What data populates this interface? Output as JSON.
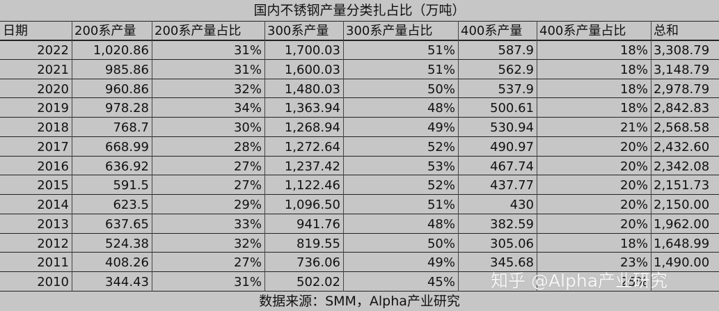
{
  "chart_data": {
    "type": "table",
    "title": "国内不锈钢产量分类扎占比（万吨）",
    "columns": [
      "日期",
      "200系产量",
      "200系产量占比",
      "300系产量",
      "300系产量占比",
      "400系产量",
      "400系产量占比",
      "总和"
    ],
    "rows": [
      [
        "2022",
        "1,020.86",
        "31%",
        "1,700.03",
        "51%",
        "587.9",
        "18%",
        "3,308.79"
      ],
      [
        "2021",
        "985.86",
        "31%",
        "1,600.03",
        "51%",
        "562.9",
        "18%",
        "3,148.79"
      ],
      [
        "2020",
        "960.86",
        "32%",
        "1,480.03",
        "50%",
        "537.9",
        "18%",
        "2,978.79"
      ],
      [
        "2019",
        "978.28",
        "34%",
        "1,363.94",
        "48%",
        "500.61",
        "18%",
        "2,842.83"
      ],
      [
        "2018",
        "768.7",
        "30%",
        "1,268.94",
        "49%",
        "530.94",
        "21%",
        "2,568.58"
      ],
      [
        "2017",
        "668.99",
        "28%",
        "1,272.64",
        "52%",
        "490.97",
        "20%",
        "2,432.60"
      ],
      [
        "2016",
        "636.92",
        "27%",
        "1,237.42",
        "53%",
        "467.74",
        "20%",
        "2,342.08"
      ],
      [
        "2015",
        "591.5",
        "27%",
        "1,122.46",
        "52%",
        "437.77",
        "20%",
        "2,151.73"
      ],
      [
        "2014",
        "623.5",
        "29%",
        "1,096.50",
        "51%",
        "430",
        "20%",
        "2,150.00"
      ],
      [
        "2013",
        "637.65",
        "33%",
        "941.76",
        "48%",
        "382.59",
        "20%",
        "1,962.00"
      ],
      [
        "2012",
        "524.38",
        "32%",
        "819.55",
        "50%",
        "305.06",
        "18%",
        "1,648.99"
      ],
      [
        "2011",
        "408.26",
        "27%",
        "736.06",
        "49%",
        "345.68",
        "23%",
        "1,490.00"
      ],
      [
        "2010",
        "344.43",
        "31%",
        "502.02",
        "45%",
        "",
        "25%",
        ""
      ]
    ],
    "source": "数据来源：SMM，Alpha产业研究",
    "watermark": "知乎 @Alpha产业研究"
  },
  "colors": {
    "background": "#c6c6c6",
    "text": "#111111",
    "rule": "#222222"
  }
}
